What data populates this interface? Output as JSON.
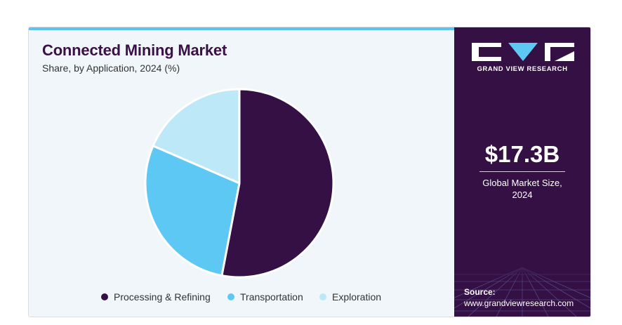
{
  "chart_data": {
    "type": "pie",
    "title": "Connected Mining Market",
    "subtitle": "Share, by Application, 2024 (%)",
    "categories": [
      "Processing & Refining",
      "Transportation",
      "Exploration"
    ],
    "values": [
      53,
      28.5,
      18.5
    ],
    "colors": [
      "#351044",
      "#5ec8f4",
      "#bde8f8"
    ],
    "legend": "bottom"
  },
  "side_panel": {
    "brand": "GRAND VIEW RESEARCH",
    "market_size": "$17.3B",
    "market_size_caption_line1": "Global Market Size,",
    "market_size_caption_line2": "2024",
    "source_label": "Source:",
    "source_url": "www.grandviewresearch.com"
  }
}
